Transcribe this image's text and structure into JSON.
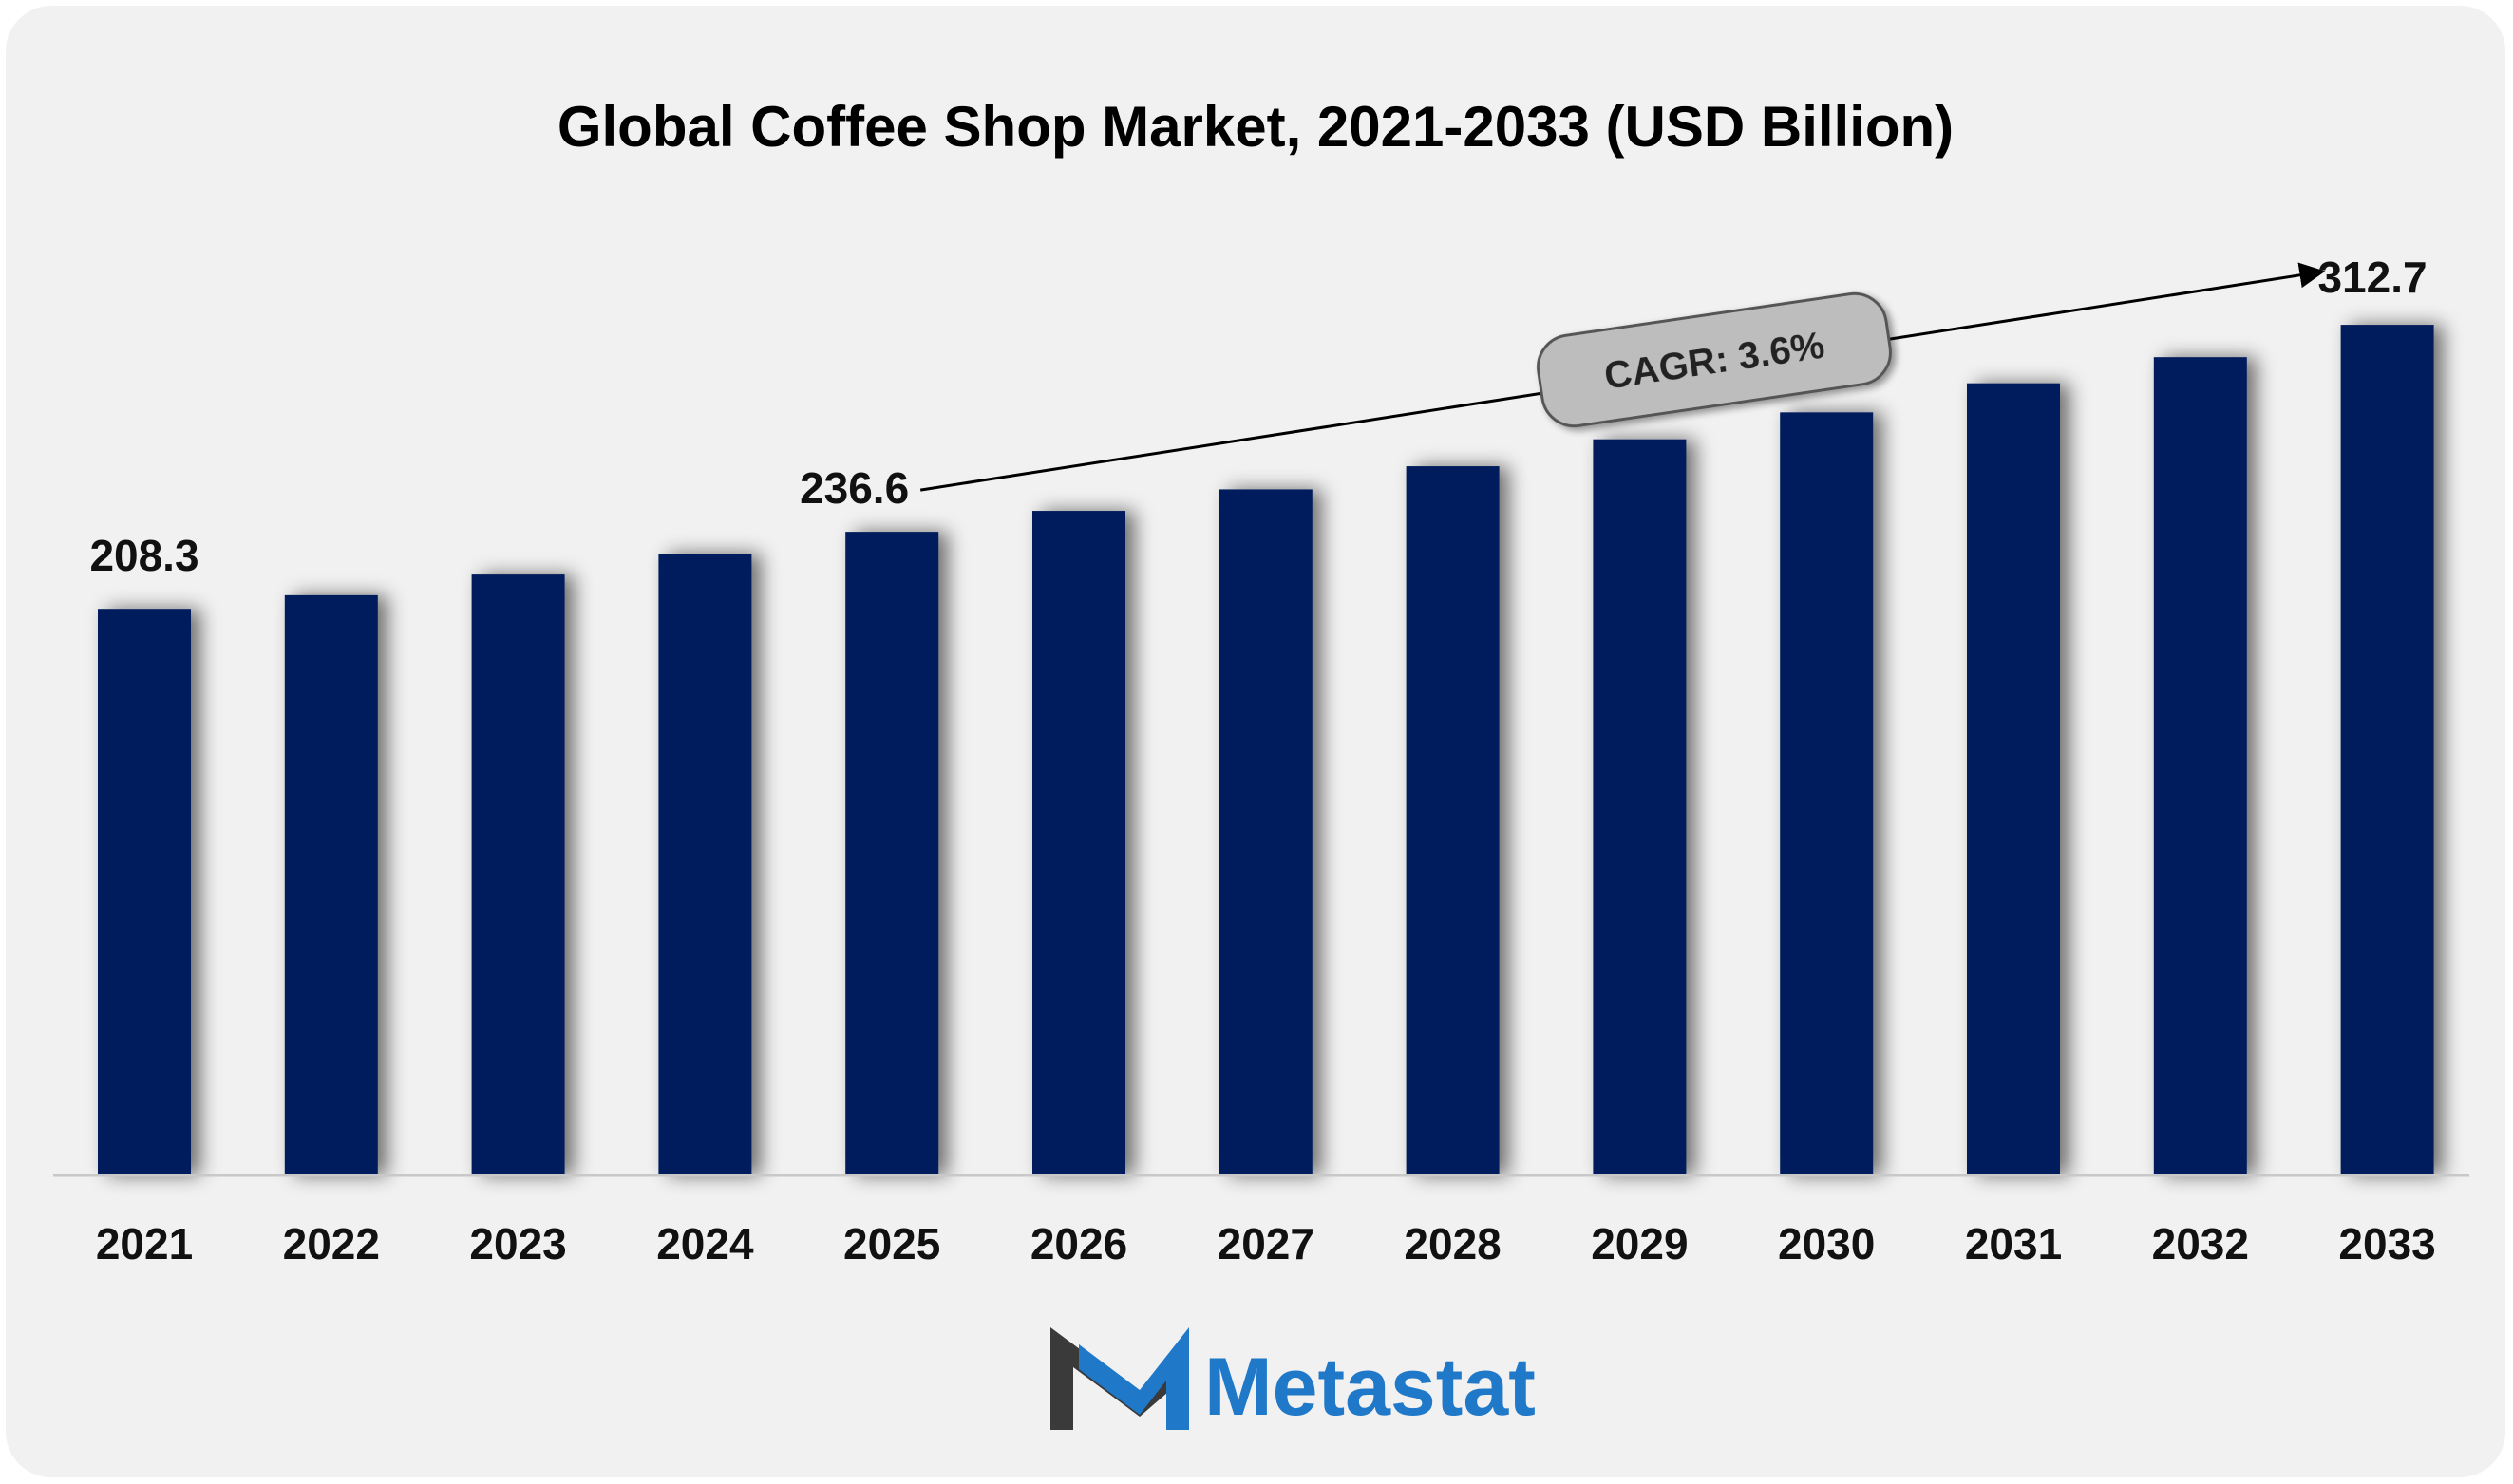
{
  "chart_data": {
    "type": "bar",
    "title": "Global Coffee Shop Market, 2021-2033 (USD Billion)",
    "categories": [
      "2021",
      "2022",
      "2023",
      "2024",
      "2025",
      "2026",
      "2027",
      "2028",
      "2029",
      "2030",
      "2031",
      "2032",
      "2033"
    ],
    "values": [
      208.3,
      213.3,
      220.9,
      228.6,
      236.6,
      244.3,
      252.2,
      260.7,
      270.6,
      280.5,
      291.2,
      300.8,
      312.7
    ],
    "data_labels": {
      "0": "208.3",
      "4": "236.6",
      "12": "312.7"
    },
    "annotation": "CAGR: 3.6%",
    "xlabel": "",
    "ylabel": "",
    "ylim": [
      0,
      430
    ],
    "grid": false,
    "legend": "none",
    "bar_color": "#001f5b"
  },
  "logo": {
    "text": "Metastat",
    "color": "#1f78c8",
    "mark_dark": "#3a3a3a"
  }
}
